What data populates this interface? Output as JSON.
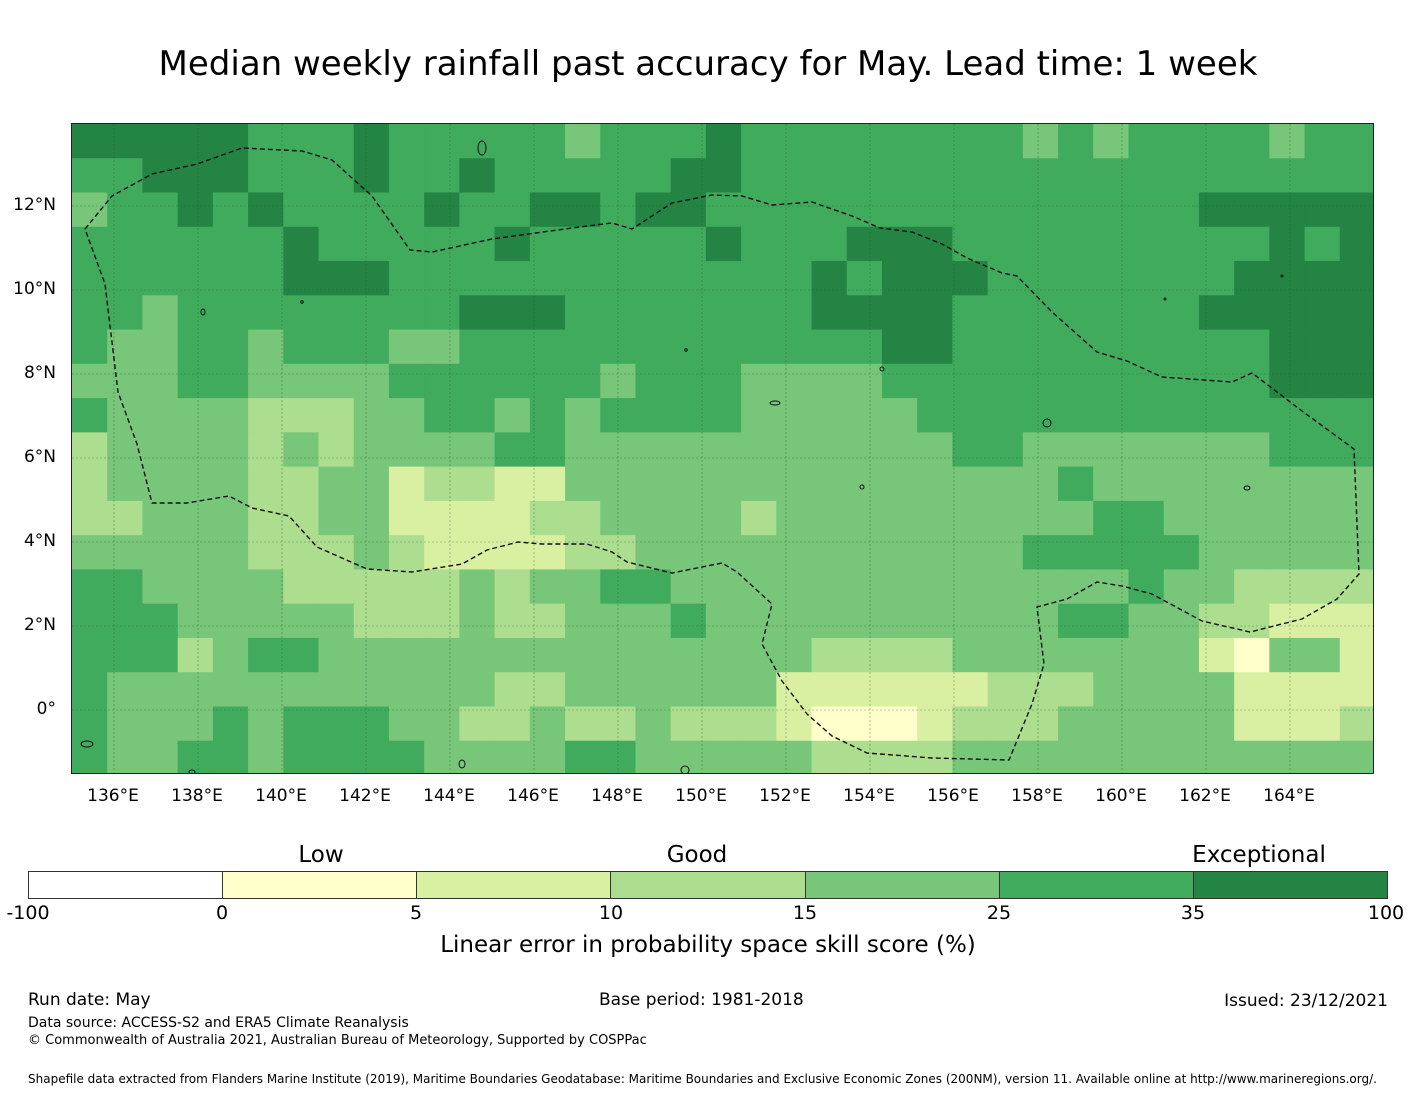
{
  "title": "Median weekly rainfall past accuracy for May. Lead time: 1 week",
  "map": {
    "lat_labels": [
      "12°N",
      "10°N",
      "8°N",
      "6°N",
      "4°N",
      "2°N",
      "0°"
    ],
    "lon_labels": [
      "136°E",
      "138°E",
      "140°E",
      "142°E",
      "144°E",
      "146°E",
      "148°E",
      "150°E",
      "152°E",
      "154°E",
      "156°E",
      "158°E",
      "160°E",
      "162°E",
      "164°E"
    ],
    "eez_boundary_style": "dashed",
    "gridlines": true
  },
  "legend": {
    "categories": [
      {
        "label": "Low"
      },
      {
        "label": "Good"
      },
      {
        "label": "Exceptional"
      }
    ],
    "ticks": [
      "-100",
      "0",
      "5",
      "10",
      "15",
      "25",
      "35",
      "100"
    ],
    "colors": [
      "#ffffff",
      "#ffffcc",
      "#d9f0a3",
      "#addd8e",
      "#78c679",
      "#41ab5d",
      "#238443"
    ],
    "title": "Linear error in probability space skill score (%)"
  },
  "footer": {
    "run_date": "Run date: May",
    "base_period": "Base period: 1981-2018",
    "issued": "Issued: 23/12/2021",
    "data_source": "Data source: ACCESS-S2 and ERA5 Climate Reanalysis",
    "copyright": "© Commonwealth of Australia 2021, Australian Bureau of Meteorology, Supported by COSPPac",
    "shapefile": "Shapefile data extracted from Flanders Marine Institute (2019), Maritime Boundaries Geodatabase: Maritime Boundaries and Exclusive Economic Zones (200NM), version 11. Available online at http://www.marineregions.org/."
  }
}
